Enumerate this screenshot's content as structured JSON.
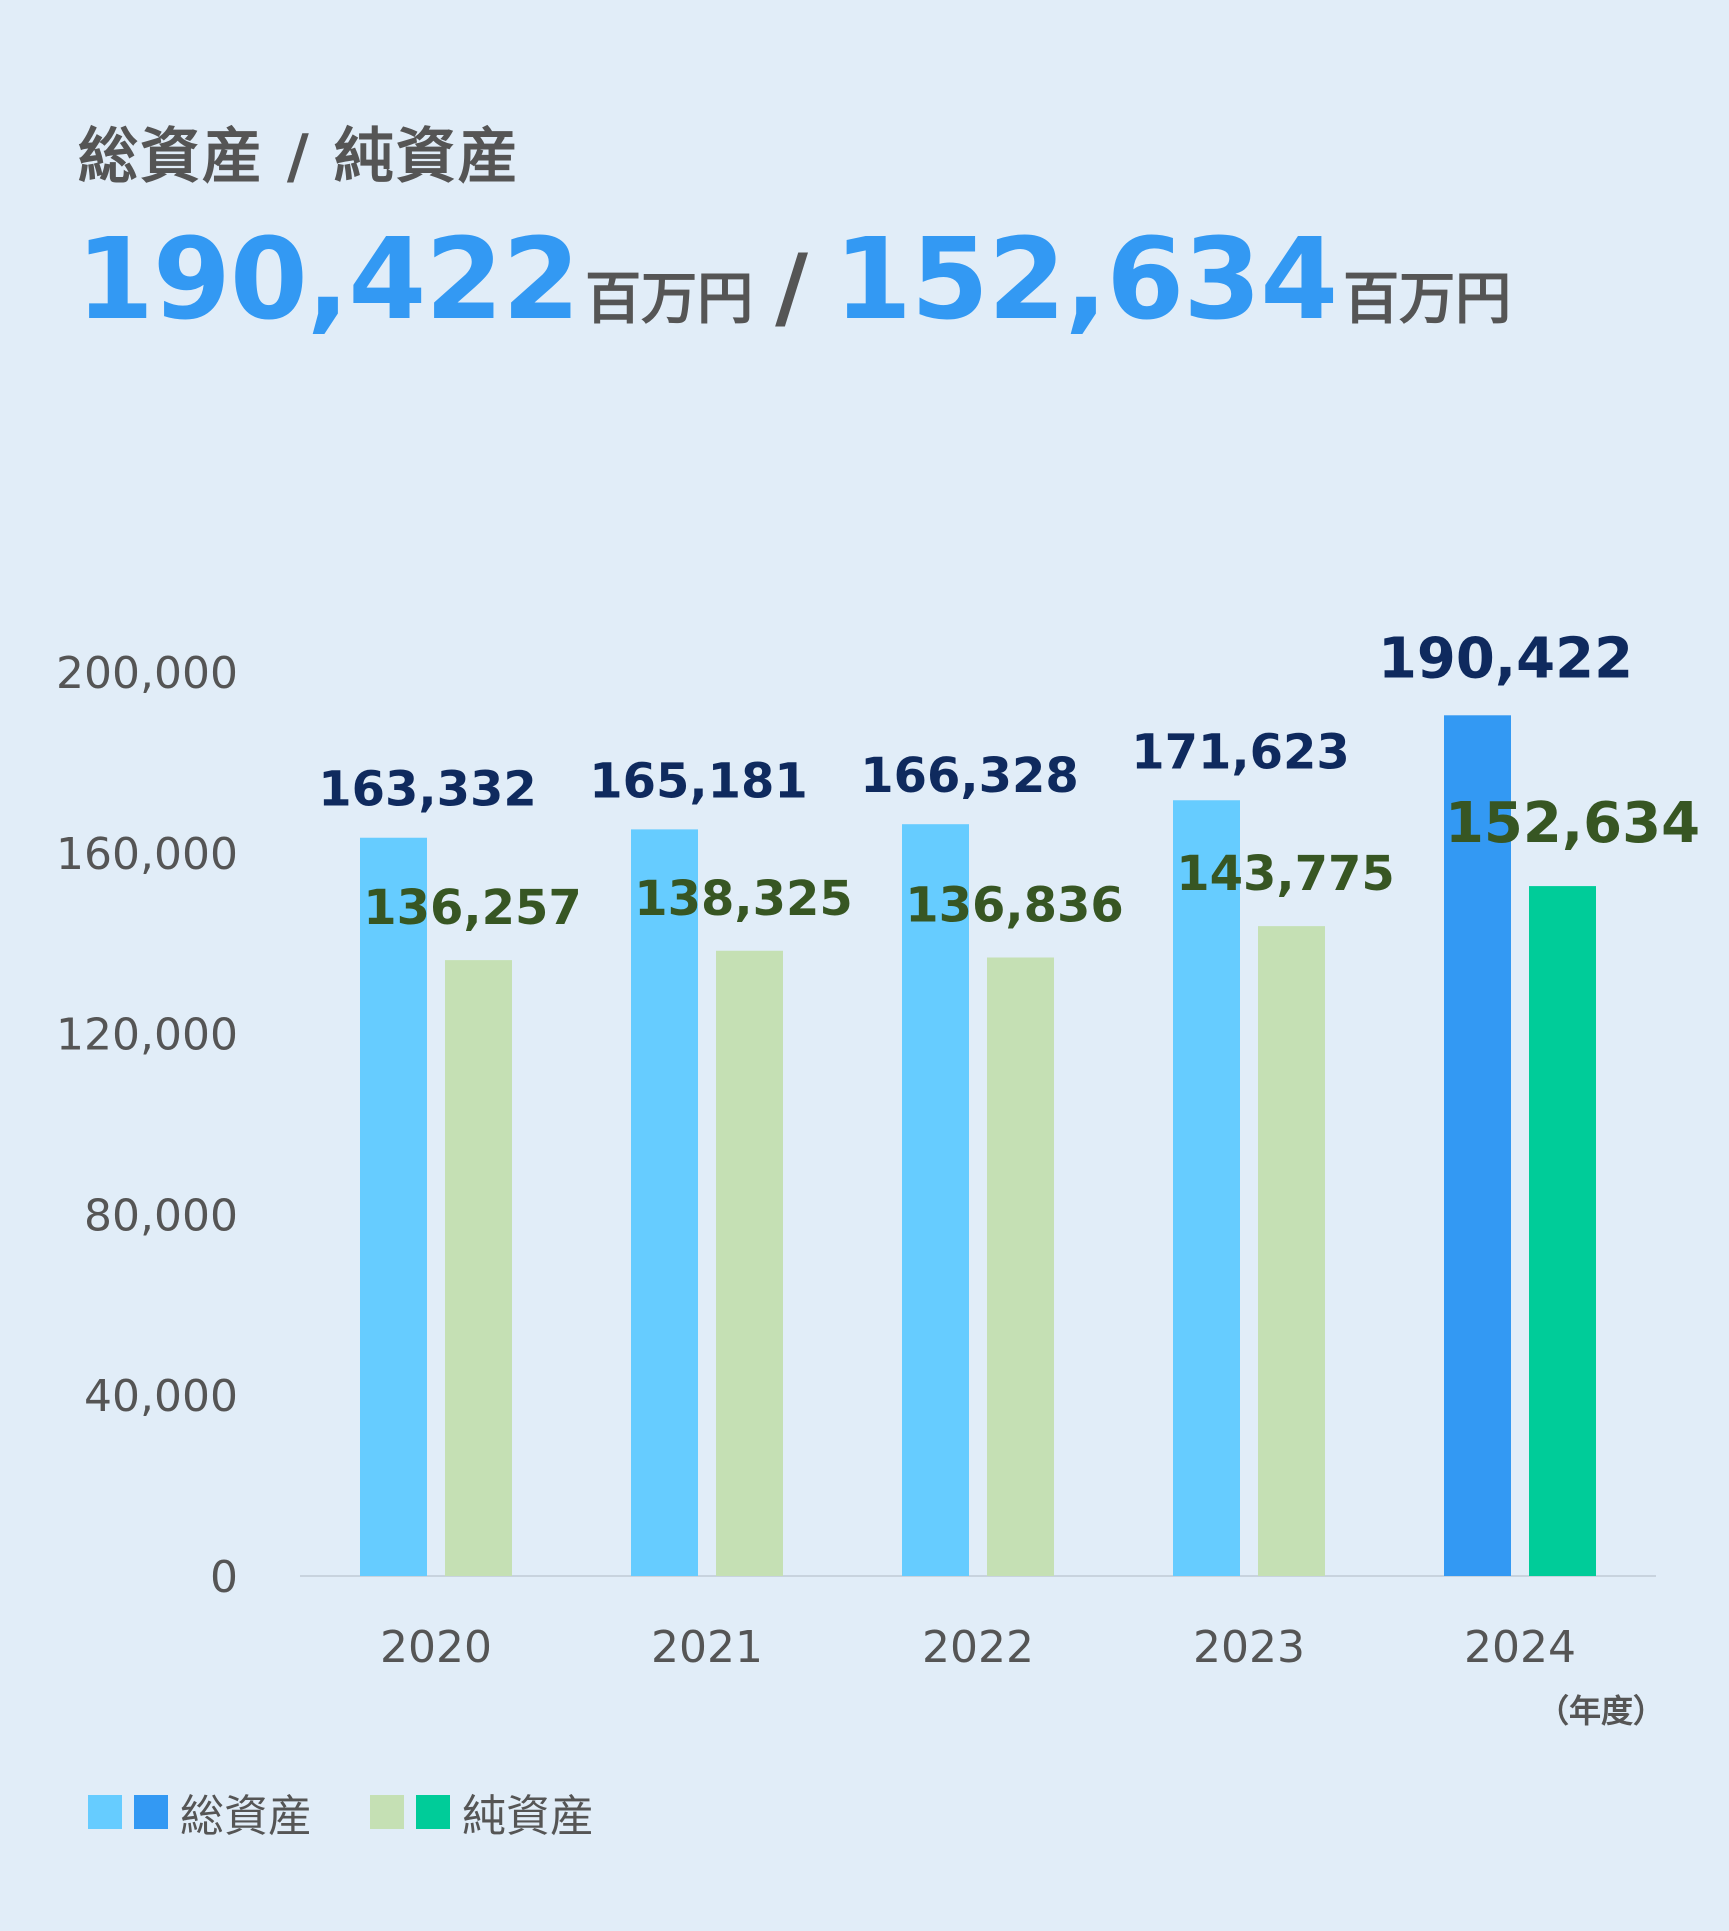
{
  "header": {
    "title": "総資産 / 純資産",
    "total_assets": "190,422",
    "total_assets_unit": "百万円",
    "separator": "/",
    "net_assets": "152,634",
    "net_assets_unit": "百万円"
  },
  "legend": {
    "total_assets_label": "総資産",
    "net_assets_label": "純資産"
  },
  "colors": {
    "background": "#e1edf8",
    "total_assets": "#66ccff",
    "total_assets_latest": "#3399f3",
    "net_assets": "#c5e0b4",
    "net_assets_latest": "#00cc99",
    "total_label": "#0f2a5e",
    "net_label": "#375623",
    "axis_text": "#555555",
    "headline": "#3399f3"
  },
  "chart_data": {
    "type": "bar",
    "categories": [
      "2020",
      "2021",
      "2022",
      "2023",
      "2024"
    ],
    "xlabel": "（年度）",
    "ylabel": "",
    "ylim": [
      0,
      200000
    ],
    "yticks": [
      0,
      40000,
      80000,
      120000,
      160000,
      200000
    ],
    "ytick_labels": [
      "0",
      "40,000",
      "80,000",
      "120,000",
      "160,000",
      "200,000"
    ],
    "grid": false,
    "legend_position": "bottom-left",
    "series": [
      {
        "name": "総資産",
        "values": [
          163332,
          165181,
          166328,
          171623,
          190422
        ],
        "labels": [
          "163,332",
          "165,181",
          "166,328",
          "171,623",
          "190,422"
        ]
      },
      {
        "name": "純資産",
        "values": [
          136257,
          138325,
          136836,
          143775,
          152634
        ],
        "labels": [
          "136,257",
          "138,325",
          "136,836",
          "143,775",
          "152,634"
        ]
      }
    ]
  }
}
